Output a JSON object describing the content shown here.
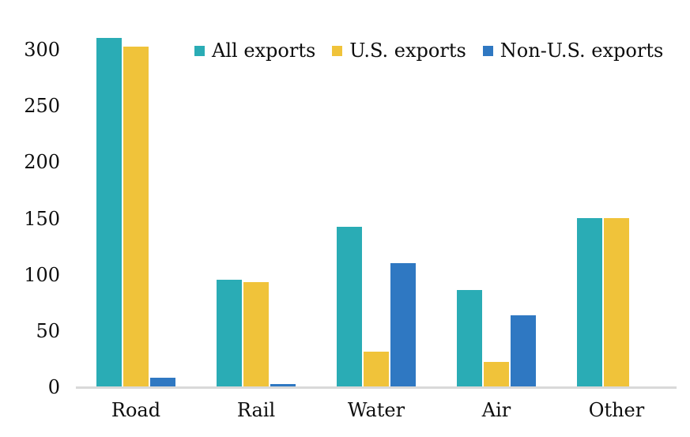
{
  "chart_data": {
    "type": "bar",
    "title": "",
    "xlabel": "",
    "ylabel": "",
    "categories": [
      "Road",
      "Rail",
      "Water",
      "Air",
      "Other"
    ],
    "series": [
      {
        "name": "All exports",
        "color": "#2AACB5",
        "values": [
          310,
          95,
          142,
          86,
          150
        ]
      },
      {
        "name": "U.S. exports",
        "color": "#F0C33A",
        "values": [
          302,
          93,
          31,
          22,
          150
        ]
      },
      {
        "name": "Non-U.S. exports",
        "color": "#2F78C2",
        "values": [
          8,
          2,
          110,
          63,
          0
        ]
      }
    ],
    "y_ticks": [
      0,
      50,
      100,
      150,
      200,
      250,
      300
    ],
    "ylim": [
      0,
      310
    ],
    "grid": false,
    "legend_position": "top",
    "axis_line_color": "#D9D9D9",
    "text_color": "#0d0d0d"
  }
}
